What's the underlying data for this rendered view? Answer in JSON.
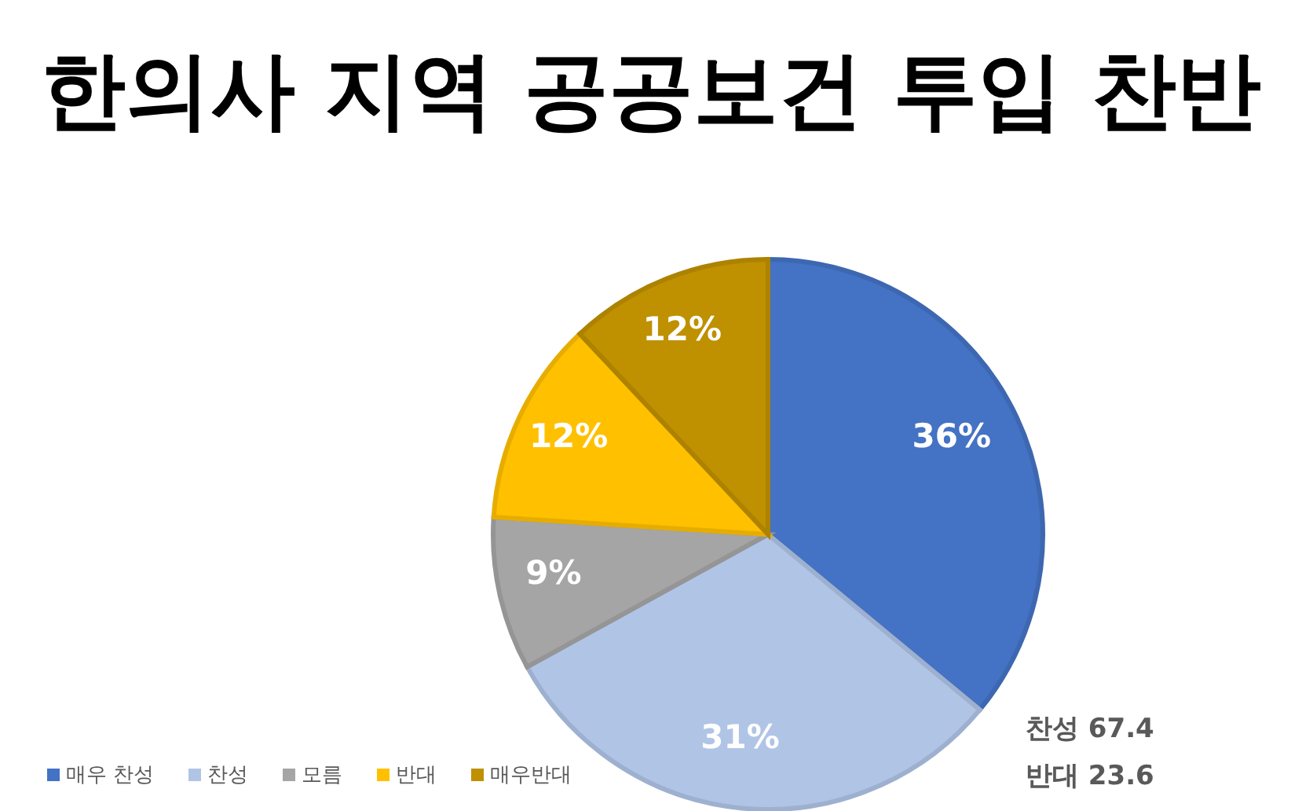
{
  "chart_data": {
    "type": "pie",
    "title": "한의사 지역 공공보건 투입 찬반",
    "categories": [
      "매우 찬성",
      "찬성",
      "모름",
      "반대",
      "매우반대"
    ],
    "values": [
      36,
      31,
      9,
      12,
      12
    ],
    "colors": [
      "#4472c4",
      "#b0c4e6",
      "#a5a5a5",
      "#ffc000",
      "#bf9000"
    ],
    "value_labels": [
      "36%",
      "31%",
      "9%",
      "12%",
      "12%"
    ],
    "legend": "bottom left",
    "annotations": [
      "찬성 67.4",
      "반대 23.6"
    ]
  }
}
